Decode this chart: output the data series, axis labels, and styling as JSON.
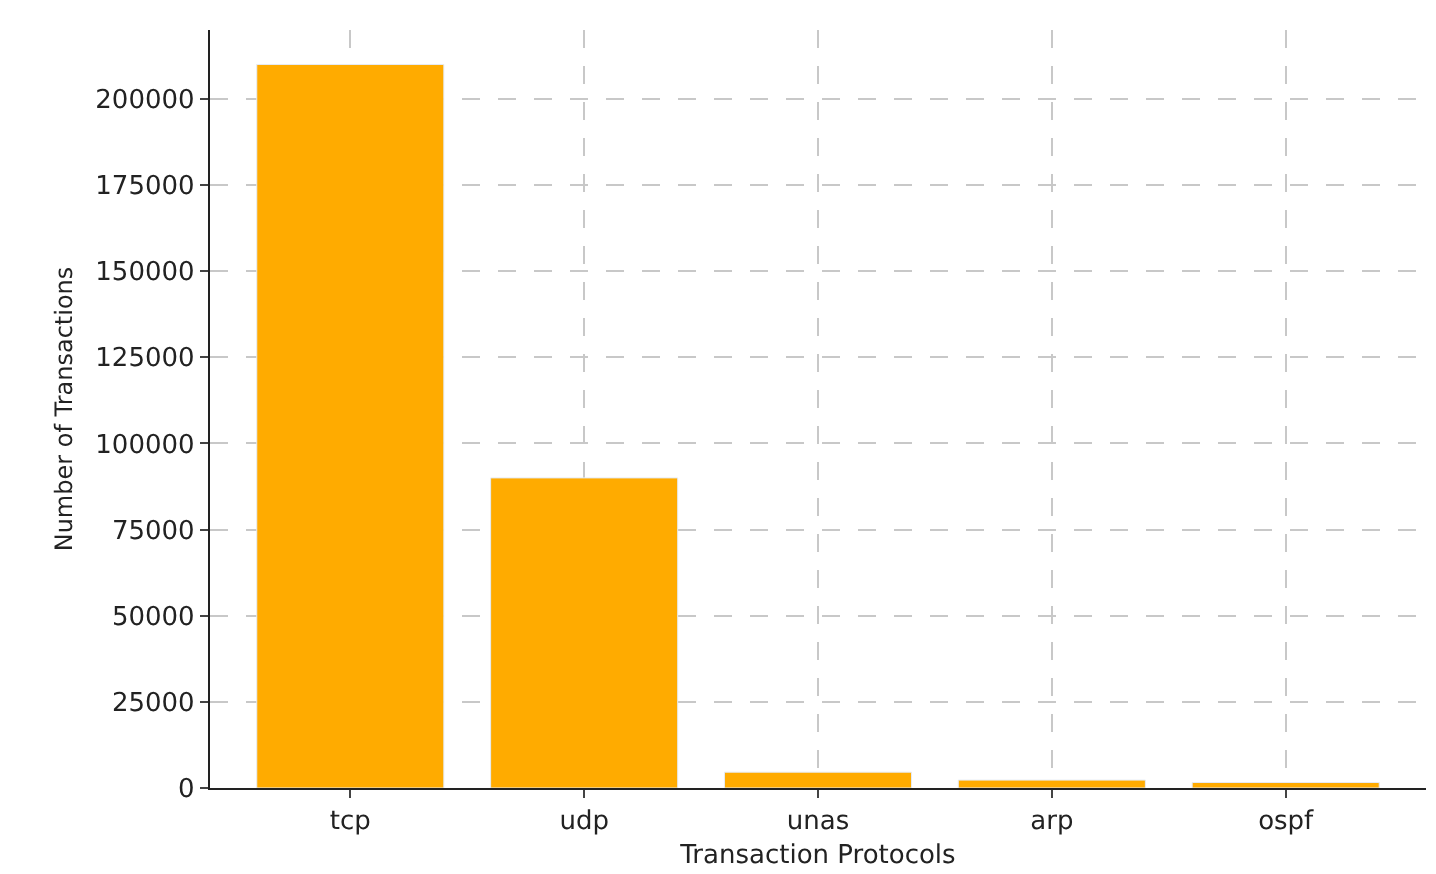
{
  "chart_data": {
    "type": "bar",
    "xlabel": "Transaction Protocols",
    "ylabel": "Number of Transactions",
    "categories": [
      "tcp",
      "udp",
      "unas",
      "arp",
      "ospf"
    ],
    "values": [
      210000,
      90000,
      4600,
      2300,
      1600
    ],
    "color": "#ffab00",
    "ylim": [
      0,
      220000
    ],
    "yticks": [
      0,
      25000,
      50000,
      75000,
      100000,
      125000,
      150000,
      175000,
      200000
    ],
    "grid": true,
    "legend": false
  }
}
